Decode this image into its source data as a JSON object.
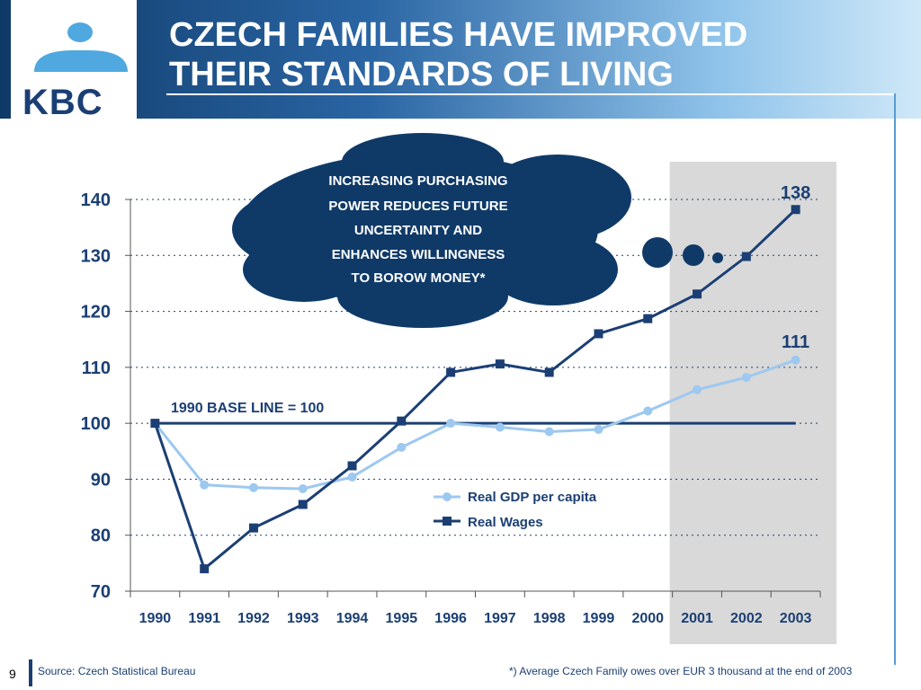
{
  "header": {
    "title_line1": "CZECH FAMILIES HAVE IMPROVED",
    "title_line2": "THEIR STANDARDS OF LIVING",
    "logo_text": "KBC"
  },
  "footer": {
    "page_number": "9",
    "source": "Source: Czech Statistical Bureau",
    "footnote": "*) Average Czech Family owes over EUR 3 thousand at the end of 2003"
  },
  "callout": {
    "lines": [
      "INCREASING PURCHASING",
      "POWER REDUCES FUTURE",
      "UNCERTAINTY AND",
      "ENHANCES WILLINGNESS",
      "TO BOROW MONEY*"
    ]
  },
  "colors": {
    "navy": "#1b3f74",
    "light_blue": "#9dc8f0",
    "shade": "#d9d9d9"
  },
  "chart_data": {
    "type": "line",
    "categories": [
      "1990",
      "1991",
      "1992",
      "1993",
      "1994",
      "1995",
      "1996",
      "1997",
      "1998",
      "1999",
      "2000",
      "2001",
      "2002",
      "2003"
    ],
    "series": [
      {
        "name": "Real GDP per capita",
        "color": "#9dc8f0",
        "marker": "circle",
        "values": [
          100,
          89,
          88.5,
          88.3,
          90.4,
          95.7,
          100,
          99.3,
          98.5,
          98.9,
          102.2,
          106,
          108.2,
          111.3
        ]
      },
      {
        "name": "Real Wages",
        "color": "#1b3f74",
        "marker": "square",
        "values": [
          100,
          74,
          81.3,
          85.5,
          92.4,
          100.4,
          109.1,
          110.6,
          109.1,
          116,
          118.7,
          123.1,
          129.8,
          138.2
        ]
      }
    ],
    "ylim": [
      70,
      140
    ],
    "yticks": [
      70,
      80,
      90,
      100,
      110,
      120,
      130,
      140
    ],
    "baseline": {
      "value": 100,
      "label": "1990 BASE LINE = 100"
    },
    "end_labels": {
      "wages": "138",
      "gdp": "111"
    },
    "highlight_categories": [
      "2001",
      "2002",
      "2003"
    ],
    "grid": "horizontal-dotted",
    "legend_position": "lower-right"
  }
}
